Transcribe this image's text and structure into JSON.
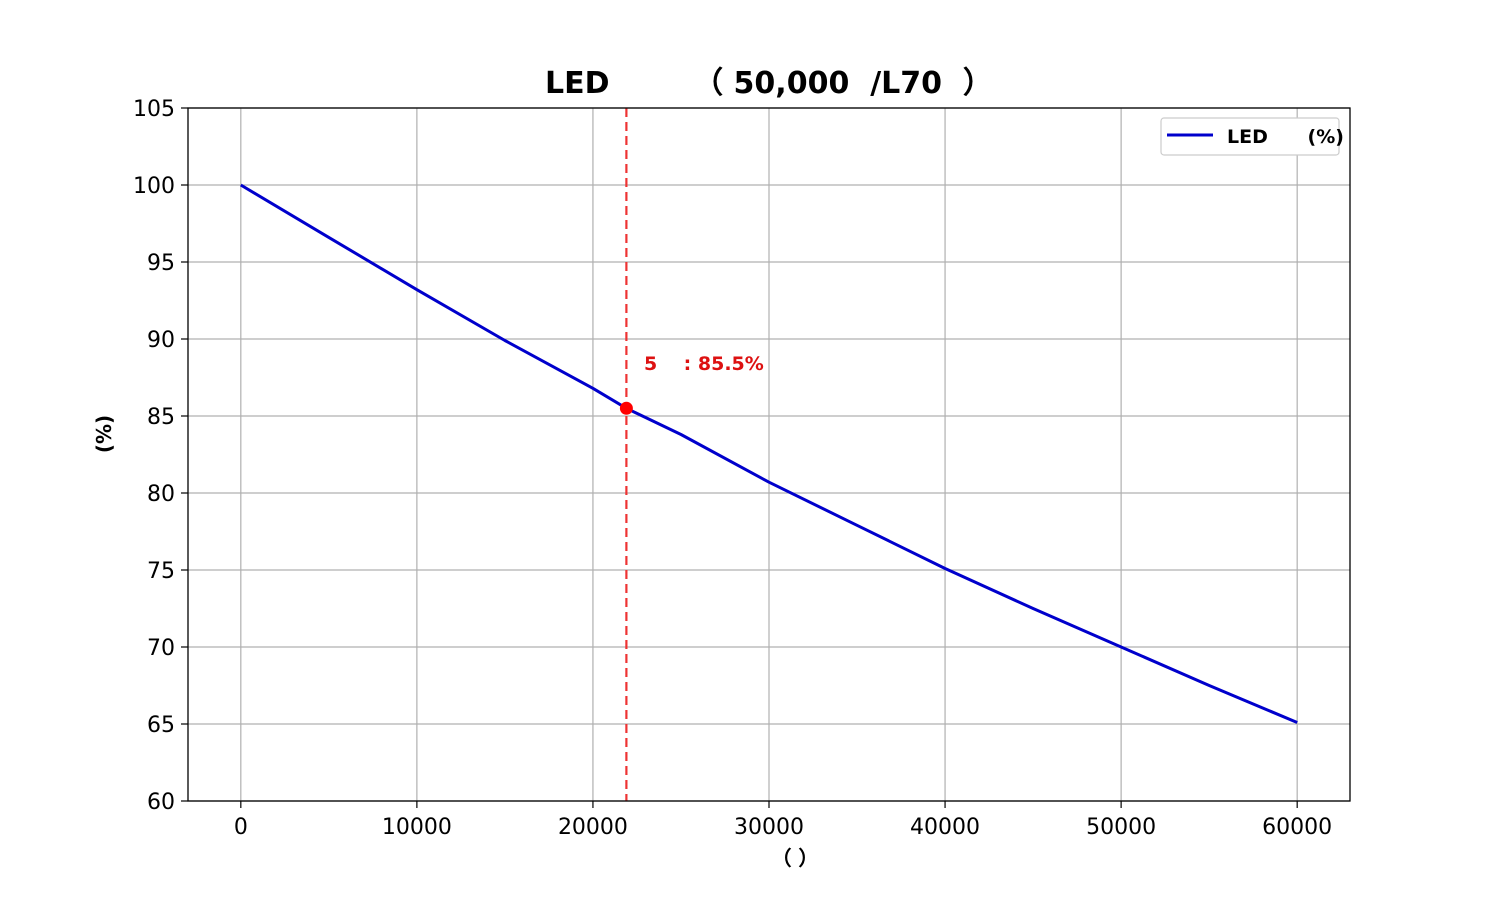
{
  "chart_data": {
    "type": "line",
    "title": "LED        （ 50,000  /L70  ）",
    "xlabel": "（ ）",
    "ylabel": "(%)",
    "xlim": [
      -3000,
      63000
    ],
    "ylim": [
      60,
      105
    ],
    "x_ticks": [
      0,
      10000,
      20000,
      30000,
      40000,
      50000,
      60000
    ],
    "y_ticks": [
      60,
      65,
      70,
      75,
      80,
      85,
      90,
      95,
      100,
      105
    ],
    "x_tick_labels": [
      "0",
      "10000",
      "20000",
      "30000",
      "40000",
      "50000",
      "60000"
    ],
    "y_tick_labels": [
      "60",
      "65",
      "70",
      "75",
      "80",
      "85",
      "90",
      "95",
      "100",
      "105"
    ],
    "grid": true,
    "legend": {
      "placement": "top-right",
      "entries": [
        "LED      (%)"
      ]
    },
    "series": [
      {
        "name": "LED      (%)",
        "color": "#0000cc",
        "x": [
          0,
          5000,
          10000,
          15000,
          20000,
          21900,
          25000,
          30000,
          35000,
          40000,
          45000,
          50000,
          55000,
          60000
        ],
        "y": [
          100,
          96.6,
          93.2,
          89.9,
          86.8,
          85.5,
          83.8,
          80.7,
          77.9,
          75.1,
          72.5,
          70.0,
          67.5,
          65.1
        ]
      }
    ],
    "annotations": {
      "marker": {
        "x": 21900,
        "y": 85.5,
        "color": "#ff0000"
      },
      "vline": {
        "x": 21900,
        "color": "#ee3333",
        "style": "dashed"
      },
      "label": {
        "text": "5    : 85.5%",
        "x": 22900,
        "y": 88,
        "color": "#dd1111"
      }
    }
  }
}
